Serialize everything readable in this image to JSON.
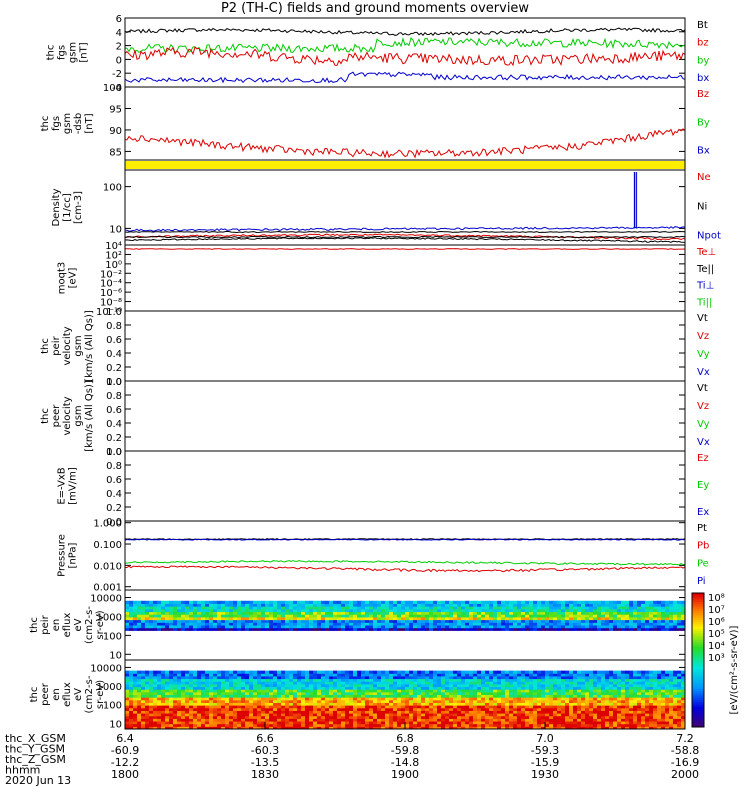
{
  "title": "P2 (TH-C) fields and ground moments overview",
  "colors": {
    "black": "#000000",
    "red": "#dd0000",
    "green": "#00cc00",
    "blue": "#0000cc",
    "yellow": "#ffee00"
  },
  "chart_data": [
    {
      "type": "line",
      "ylabel": [
        "thc",
        "fgs",
        "gsm",
        "[nT]"
      ],
      "ylim": [
        -4,
        6
      ],
      "yticks": [
        "6",
        "4",
        "2",
        "0",
        "-2",
        "-4"
      ],
      "series": [
        {
          "name": "Bt",
          "color": "black"
        },
        {
          "name": "bz",
          "color": "red"
        },
        {
          "name": "by",
          "color": "green"
        },
        {
          "name": "bx",
          "color": "blue"
        }
      ]
    },
    {
      "type": "line",
      "ylabel": [
        "thc",
        "fgs",
        "gsm",
        "-dsb",
        "[nT]"
      ],
      "ylim": [
        83,
        100
      ],
      "yticks": [
        "100",
        "95",
        "90",
        "85"
      ],
      "series": [
        {
          "name": "Bz",
          "color": "red"
        },
        {
          "name": "By",
          "color": "green"
        },
        {
          "name": "Bx",
          "color": "blue"
        }
      ]
    },
    {
      "type": "bar",
      "ylabel": [],
      "series": []
    },
    {
      "type": "line",
      "ylabel": [
        "Density",
        "[1/cc]",
        "[cm-3]"
      ],
      "yscale": "log",
      "ylim": [
        4,
        250
      ],
      "yticks": [
        "100",
        "10"
      ],
      "series": [
        {
          "name": "Ne",
          "color": "red"
        },
        {
          "name": "Ni",
          "color": "black"
        },
        {
          "name": "Npot",
          "color": "blue"
        }
      ]
    },
    {
      "type": "line",
      "ylabel": [
        "moqt3",
        "[eV]"
      ],
      "yticks": [
        "10⁴",
        "10²",
        "10⁰",
        "10⁻²",
        "10⁻⁴",
        "10⁻⁶",
        "10⁻⁸",
        "10⁻¹⁰"
      ],
      "series": [
        {
          "name": "Te⊥",
          "color": "red"
        },
        {
          "name": "Te||",
          "color": "black"
        },
        {
          "name": "Ti⊥",
          "color": "blue"
        },
        {
          "name": "Ti||",
          "color": "green"
        }
      ]
    },
    {
      "type": "line",
      "ylabel": [
        "thc",
        "peir",
        "velocity",
        "gsm",
        "[km/s (All Qs)]"
      ],
      "ylim": [
        0,
        1
      ],
      "yticks": [
        "1.0",
        "0.8",
        "0.6",
        "0.4",
        "0.2",
        "0.0"
      ],
      "series": [
        {
          "name": "Vt",
          "color": "black"
        },
        {
          "name": "Vz",
          "color": "red"
        },
        {
          "name": "Vy",
          "color": "green"
        },
        {
          "name": "Vx",
          "color": "blue"
        }
      ]
    },
    {
      "type": "line",
      "ylabel": [
        "thc",
        "peer",
        "velocity",
        "gsm",
        "[km/s (All Qs)]"
      ],
      "ylim": [
        0,
        1
      ],
      "yticks": [
        "1.0",
        "0.8",
        "0.6",
        "0.4",
        "0.2",
        "0.0"
      ],
      "series": [
        {
          "name": "Vt",
          "color": "black"
        },
        {
          "name": "Vz",
          "color": "red"
        },
        {
          "name": "Vy",
          "color": "green"
        },
        {
          "name": "Vx",
          "color": "blue"
        }
      ]
    },
    {
      "type": "line",
      "ylabel": [
        "E=-VxB",
        "[mV/m]"
      ],
      "ylim": [
        0,
        1
      ],
      "yticks": [
        "1.0",
        "0.8",
        "0.6",
        "0.4",
        "0.2",
        "0.0"
      ],
      "series": [
        {
          "name": "Ez",
          "color": "red"
        },
        {
          "name": "Ey",
          "color": "green"
        },
        {
          "name": "Ex",
          "color": "blue"
        }
      ]
    },
    {
      "type": "line",
      "ylabel": [
        "Pressure",
        "[nPa]"
      ],
      "yscale": "log",
      "ylim": [
        0.0007,
        1.2
      ],
      "yticks": [
        "1.000",
        "0.100",
        "0.010",
        "0.001"
      ],
      "series": [
        {
          "name": "Pt",
          "color": "black"
        },
        {
          "name": "Pb",
          "color": "red"
        },
        {
          "name": "Pe",
          "color": "green"
        },
        {
          "name": "Pi",
          "color": "blue"
        }
      ]
    },
    {
      "type": "heatmap",
      "ylabel": [
        "thc",
        "peir",
        "en",
        "eflux",
        "eV",
        "(cm2-s-",
        "sr-eV)"
      ],
      "yscale": "log",
      "ylim": [
        5,
        25000
      ],
      "yticks": [
        "10000",
        "1000",
        "100",
        "10"
      ]
    },
    {
      "type": "heatmap",
      "ylabel": [
        "thc",
        "peer",
        "en",
        "eflux",
        "eV",
        "(cm2-s-",
        "sr-eV)"
      ],
      "yscale": "log",
      "ylim": [
        5,
        25000
      ],
      "yticks": [
        "10000",
        "1000",
        "100",
        "10"
      ]
    }
  ],
  "colorbar": {
    "label": "[eV/(cm²-s-sr-eV)]",
    "labels": [
      "10⁸",
      "10⁷",
      "10⁶",
      "10⁵",
      "10⁴",
      "10³"
    ]
  },
  "xaxis": {
    "rows_label": [
      "thc_X_GSM",
      "thc_Y_GSM",
      "thc_Z_GSM",
      "hhmm",
      "2020 Jun 13"
    ],
    "ticks": [
      {
        "x": "6.4",
        "X": "-60.9",
        "Y": "-12.2",
        "Z": "1800"
      },
      {
        "x": "6.6",
        "X": "-60.3",
        "Y": "-13.5",
        "Z": "1830"
      },
      {
        "x": "6.8",
        "X": "-59.8",
        "Y": "-14.8",
        "Z": "1900"
      },
      {
        "x": "7.0",
        "X": "-59.3",
        "Y": "-15.9",
        "Z": "1930"
      },
      {
        "x": "7.2",
        "X": "-58.8",
        "Y": "-16.9",
        "Z": "2000"
      }
    ]
  }
}
